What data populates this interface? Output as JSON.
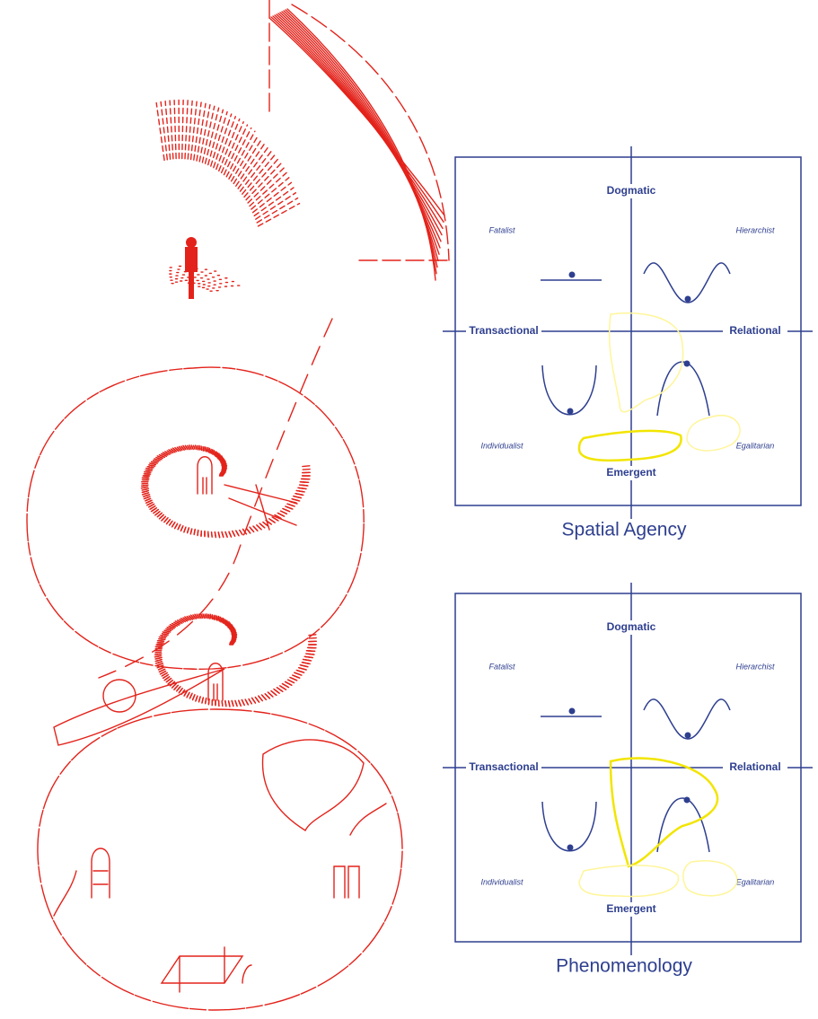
{
  "diagrams": [
    {
      "top": "Dogmatic",
      "bottom": "Emergent",
      "left": "Transactional",
      "right": "Relational",
      "quadrants": [
        "Fatalist",
        "Hierarchist",
        "Individualist",
        "Egalitarian"
      ],
      "title": "Spatial Agency"
    },
    {
      "top": "Dogmatic",
      "bottom": "Emergent",
      "left": "Transactional",
      "right": "Relational",
      "quadrants": [
        "Fatalist",
        "Hierarchist",
        "Individualist",
        "Egalitarian"
      ],
      "title": "Phenomenology"
    }
  ]
}
